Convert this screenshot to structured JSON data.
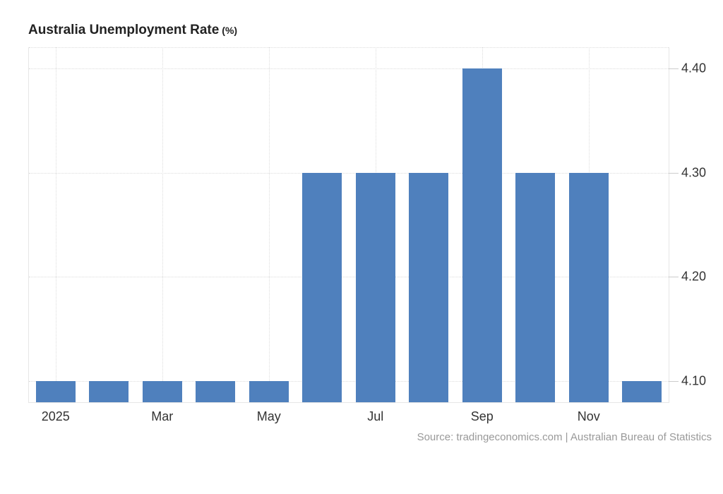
{
  "header": {
    "title": "Australia Unemployment Rate",
    "unit": "(%)"
  },
  "footer": {
    "source": "Source: tradingeconomics.com | Australian Bureau of Statistics"
  },
  "chart_data": {
    "type": "bar",
    "title": "Australia Unemployment Rate (%)",
    "categories": [
      "Jan 2025",
      "Feb 2025",
      "Mar 2025",
      "Apr 2025",
      "May 2025",
      "Jun 2025",
      "Jul 2025",
      "Aug 2025",
      "Sep 2025",
      "Oct 2025",
      "Nov 2025",
      "Dec 2025"
    ],
    "values": [
      4.1,
      4.1,
      4.1,
      4.1,
      4.1,
      4.3,
      4.3,
      4.3,
      4.4,
      4.3,
      4.3,
      4.1
    ],
    "xlabel": "",
    "ylabel": "",
    "x_ticks": [
      {
        "index": 0,
        "label": "2025"
      },
      {
        "index": 2,
        "label": "Mar"
      },
      {
        "index": 4,
        "label": "May"
      },
      {
        "index": 6,
        "label": "Jul"
      },
      {
        "index": 8,
        "label": "Sep"
      },
      {
        "index": 10,
        "label": "Nov"
      }
    ],
    "y_ticks": [
      {
        "value": 4.1,
        "label": "4.10"
      },
      {
        "value": 4.2,
        "label": "4.20"
      },
      {
        "value": 4.3,
        "label": "4.30"
      },
      {
        "value": 4.4,
        "label": "4.40"
      }
    ],
    "ylim": [
      4.08,
      4.42
    ],
    "y_axis_position": "right",
    "grid_style": "dotted",
    "legend": "none",
    "colors": {
      "bar": "#4f80bd",
      "grid": "#dcdcdc",
      "border": "#e6e6e6",
      "tick": "#cccccc",
      "axis_text": "#333333",
      "title_text": "#222222",
      "source_text": "#999999"
    }
  }
}
